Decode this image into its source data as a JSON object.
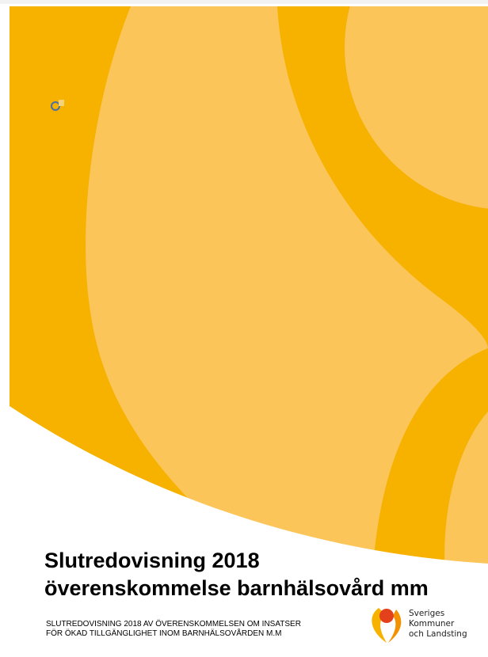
{
  "title": {
    "lines": [
      "Slutredovisning 2018",
      "överenskommelse barnhälsovård mm"
    ]
  },
  "subtitle": {
    "lines": [
      "SLUTREDOVISNING 2018 AV ÖVERENSKOMMELSEN OM INSATSER",
      "FÖR ÖKAD TILLGÄNGLIGHET INOM BARNHÄLSOVÅRDEN M.M"
    ]
  },
  "logo": {
    "lines": [
      "Sveriges",
      "Kommuner",
      "och Landsting"
    ]
  }
}
